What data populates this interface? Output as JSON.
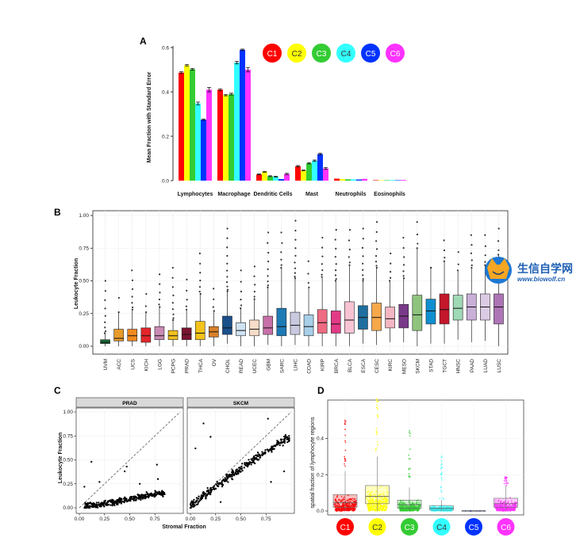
{
  "panel_labels": {
    "a": "A",
    "b": "B",
    "c": "C",
    "d": "D"
  },
  "watermark": {
    "title": "生信自学网",
    "url": "www.biowolf.cn"
  },
  "cluster_colors": [
    "#ff0000",
    "#ffff00",
    "#33cc33",
    "#33ffff",
    "#0033ff",
    "#ff33ff"
  ],
  "chart_data": [
    {
      "id": "A",
      "type": "bar",
      "title": "",
      "xlabel": "",
      "ylabel": "Mean  Fraction with Standard Error",
      "ylim": [
        0,
        0.6
      ],
      "yticks": [
        "0.0",
        "0.2",
        "0.4",
        "0.6"
      ],
      "categories": [
        "Lymphocytes",
        "Macrophage",
        "Dendritic Cells",
        "Mast",
        "Neutrophils",
        "Eosinophils"
      ],
      "legend": {
        "placement": "top-right",
        "labels": [
          "C1",
          "C2",
          "C3",
          "C4",
          "C5",
          "C6"
        ]
      },
      "series": [
        {
          "name": "C1",
          "values": [
            0.487,
            0.41,
            0.028,
            0.065,
            0.009,
            0.002
          ],
          "errors": [
            0.004,
            0.004,
            0.002,
            0.003,
            0.001,
            0.0005
          ]
        },
        {
          "name": "C2",
          "values": [
            0.52,
            0.385,
            0.04,
            0.046,
            0.007,
            0.002
          ],
          "errors": [
            0.003,
            0.003,
            0.002,
            0.002,
            0.001,
            0.0005
          ]
        },
        {
          "name": "C3",
          "values": [
            0.502,
            0.39,
            0.02,
            0.078,
            0.006,
            0.002
          ],
          "errors": [
            0.004,
            0.004,
            0.002,
            0.003,
            0.001,
            0.0005
          ]
        },
        {
          "name": "C4",
          "values": [
            0.348,
            0.532,
            0.018,
            0.09,
            0.006,
            0.003
          ],
          "errors": [
            0.006,
            0.006,
            0.002,
            0.003,
            0.001,
            0.0005
          ]
        },
        {
          "name": "C5",
          "values": [
            0.275,
            0.59,
            0.007,
            0.12,
            0.005,
            0.002
          ],
          "errors": [
            0.003,
            0.003,
            0.001,
            0.004,
            0.001,
            0.0005
          ]
        },
        {
          "name": "C6",
          "values": [
            0.41,
            0.5,
            0.03,
            0.055,
            0.008,
            0.003
          ],
          "errors": [
            0.01,
            0.01,
            0.003,
            0.004,
            0.001,
            0.0005
          ]
        }
      ]
    },
    {
      "id": "B",
      "type": "box",
      "title": "",
      "xlabel": "",
      "ylabel": "Leukocyte Fraction",
      "ylim": [
        0,
        1
      ],
      "yticks": [
        "0.00",
        "0.25",
        "0.50",
        "0.75",
        "1.00"
      ],
      "categories": [
        "UVM",
        "ACC",
        "UCS",
        "KICH",
        "LGG",
        "PCPG",
        "PRAD",
        "THCA",
        "OV",
        "CHOL",
        "READ",
        "UCEC",
        "GBM",
        "SARC",
        "LIHC",
        "COAD",
        "KIRP",
        "BRCA",
        "BLCA",
        "ESCA",
        "CESC",
        "KIRC",
        "MESO",
        "SKCM",
        "STAD",
        "TGCT",
        "HNSC",
        "PAAD",
        "LUAD",
        "LUSC"
      ],
      "colors": [
        "#1b6e3a",
        "#e89a2a",
        "#f08a1e",
        "#e3242b",
        "#c98ab5",
        "#f0c020",
        "#7a1530",
        "#f4c21a",
        "#d98028",
        "#1a4f8a",
        "#cfe3f3",
        "#f7dcc8",
        "#c76fa8",
        "#1d7ab5",
        "#c9c9df",
        "#a7cfe8",
        "#ef6b82",
        "#e23a86",
        "#f8c4d4",
        "#1e6fa0",
        "#f6a84a",
        "#f4b6c2",
        "#7a3a8a",
        "#8fc47e",
        "#0f8fd0",
        "#c4172b",
        "#9fd9b5",
        "#c9b0d8",
        "#dccbe4",
        "#ad74b6"
      ],
      "boxes": [
        {
          "q1": 0.02,
          "median": 0.03,
          "q3": 0.05,
          "lo": 0.0,
          "hi": 0.1
        },
        {
          "q1": 0.04,
          "median": 0.06,
          "q3": 0.13,
          "lo": 0.0,
          "hi": 0.26
        },
        {
          "q1": 0.04,
          "median": 0.08,
          "q3": 0.13,
          "lo": 0.0,
          "hi": 0.28
        },
        {
          "q1": 0.03,
          "median": 0.08,
          "q3": 0.14,
          "lo": 0.0,
          "hi": 0.26
        },
        {
          "q1": 0.05,
          "median": 0.08,
          "q3": 0.15,
          "lo": 0.0,
          "hi": 0.3
        },
        {
          "q1": 0.05,
          "median": 0.08,
          "q3": 0.12,
          "lo": 0.0,
          "hi": 0.2
        },
        {
          "q1": 0.05,
          "median": 0.09,
          "q3": 0.14,
          "lo": 0.0,
          "hi": 0.28
        },
        {
          "q1": 0.05,
          "median": 0.1,
          "q3": 0.19,
          "lo": 0.0,
          "hi": 0.4
        },
        {
          "q1": 0.07,
          "median": 0.11,
          "q3": 0.15,
          "lo": 0.0,
          "hi": 0.27
        },
        {
          "q1": 0.09,
          "median": 0.14,
          "q3": 0.23,
          "lo": 0.02,
          "hi": 0.42
        },
        {
          "q1": 0.08,
          "median": 0.12,
          "q3": 0.18,
          "lo": 0.0,
          "hi": 0.29
        },
        {
          "q1": 0.08,
          "median": 0.13,
          "q3": 0.2,
          "lo": 0.0,
          "hi": 0.36
        },
        {
          "q1": 0.09,
          "median": 0.14,
          "q3": 0.23,
          "lo": 0.01,
          "hi": 0.45
        },
        {
          "q1": 0.08,
          "median": 0.15,
          "q3": 0.29,
          "lo": 0.0,
          "hi": 0.6
        },
        {
          "q1": 0.09,
          "median": 0.16,
          "q3": 0.26,
          "lo": 0.01,
          "hi": 0.52
        },
        {
          "q1": 0.08,
          "median": 0.15,
          "q3": 0.24,
          "lo": 0.0,
          "hi": 0.45
        },
        {
          "q1": 0.1,
          "median": 0.18,
          "q3": 0.28,
          "lo": 0.0,
          "hi": 0.53
        },
        {
          "q1": 0.1,
          "median": 0.17,
          "q3": 0.27,
          "lo": 0.0,
          "hi": 0.5
        },
        {
          "q1": 0.1,
          "median": 0.2,
          "q3": 0.34,
          "lo": 0.0,
          "hi": 0.62
        },
        {
          "q1": 0.13,
          "median": 0.22,
          "q3": 0.31,
          "lo": 0.02,
          "hi": 0.5
        },
        {
          "q1": 0.12,
          "median": 0.22,
          "q3": 0.33,
          "lo": 0.01,
          "hi": 0.6
        },
        {
          "q1": 0.14,
          "median": 0.21,
          "q3": 0.3,
          "lo": 0.03,
          "hi": 0.5
        },
        {
          "q1": 0.14,
          "median": 0.23,
          "q3": 0.32,
          "lo": 0.03,
          "hi": 0.52
        },
        {
          "q1": 0.12,
          "median": 0.24,
          "q3": 0.39,
          "lo": 0.0,
          "hi": 0.75
        },
        {
          "q1": 0.17,
          "median": 0.27,
          "q3": 0.36,
          "lo": 0.02,
          "hi": 0.6
        },
        {
          "q1": 0.17,
          "median": 0.28,
          "q3": 0.4,
          "lo": 0.02,
          "hi": 0.65
        },
        {
          "q1": 0.2,
          "median": 0.29,
          "q3": 0.39,
          "lo": 0.05,
          "hi": 0.58
        },
        {
          "q1": 0.2,
          "median": 0.3,
          "q3": 0.4,
          "lo": 0.03,
          "hi": 0.6
        },
        {
          "q1": 0.2,
          "median": 0.3,
          "q3": 0.4,
          "lo": 0.04,
          "hi": 0.62
        },
        {
          "q1": 0.17,
          "median": 0.3,
          "q3": 0.4,
          "lo": 0.0,
          "hi": 0.7
        }
      ],
      "outlier_max": [
        0.5,
        0.37,
        0.58,
        0.4,
        0.55,
        0.6,
        0.51,
        0.71,
        0.44,
        0.9,
        0.58,
        0.61,
        0.87,
        0.87,
        0.96,
        0.65,
        0.83,
        0.89,
        0.89,
        0.9,
        0.95,
        0.71,
        0.83,
        0.95,
        0.6,
        0.81,
        0.72,
        0.85,
        0.85,
        0.9
      ]
    },
    {
      "id": "C",
      "type": "scatter",
      "title": "",
      "xlabel": "Stromal Fraction",
      "ylabel": "Leukocyte Fraction",
      "xlim": [
        0,
        1
      ],
      "ylim": [
        0,
        1
      ],
      "xticks": [
        "0.00",
        "0.25",
        "0.50",
        "0.75"
      ],
      "yticks": [
        "0.00",
        "0.25",
        "0.50",
        "0.75",
        "1.00"
      ],
      "facets": [
        {
          "name": "PRAD",
          "trend": [
            [
              0.05,
              0.01
            ],
            [
              0.3,
              0.05
            ],
            [
              0.55,
              0.1
            ],
            [
              0.8,
              0.15
            ]
          ],
          "spread": 0.05,
          "extras": [
            [
              0.12,
              0.48
            ],
            [
              0.47,
              0.43
            ],
            [
              0.77,
              0.45
            ],
            [
              0.45,
              0.38
            ],
            [
              0.2,
              0.27
            ],
            [
              0.6,
              0.25
            ],
            [
              0.78,
              0.3
            ],
            [
              0.05,
              0.22
            ]
          ]
        },
        {
          "name": "SKCM",
          "trend": [
            [
              0.0,
              0.03
            ],
            [
              0.4,
              0.33
            ],
            [
              0.7,
              0.55
            ],
            [
              0.95,
              0.72
            ]
          ],
          "spread": 0.07,
          "extras": [
            [
              0.13,
              0.88
            ],
            [
              0.2,
              0.74
            ],
            [
              0.77,
              0.93
            ],
            [
              0.05,
              0.62
            ],
            [
              0.8,
              0.27
            ],
            [
              0.93,
              0.38
            ],
            [
              0.3,
              0.06
            ]
          ]
        }
      ]
    },
    {
      "id": "D",
      "type": "violin",
      "title": "",
      "xlabel": "",
      "ylabel": "spatial fraction of lymphocyte regions",
      "ylim": [
        0,
        0.62
      ],
      "yticks": [
        "0.0",
        "0.2",
        "0.4"
      ],
      "categories": [
        "C1",
        "C2",
        "C3",
        "C4",
        "C5",
        "C6"
      ],
      "boxes": [
        {
          "q1": 0.02,
          "median": 0.045,
          "q3": 0.09,
          "lo": 0.0,
          "hi": 0.22,
          "max": 0.5
        },
        {
          "q1": 0.04,
          "median": 0.08,
          "q3": 0.14,
          "lo": 0.0,
          "hi": 0.3,
          "max": 0.62
        },
        {
          "q1": 0.015,
          "median": 0.035,
          "q3": 0.06,
          "lo": 0.0,
          "hi": 0.13,
          "max": 0.46
        },
        {
          "q1": 0.005,
          "median": 0.015,
          "q3": 0.03,
          "lo": 0.0,
          "hi": 0.06,
          "max": 0.31
        },
        {
          "q1": 0.0,
          "median": 0.0,
          "q3": 0.002,
          "lo": 0.0,
          "hi": 0.004,
          "max": 0.004
        },
        {
          "q1": 0.02,
          "median": 0.04,
          "q3": 0.07,
          "lo": 0.0,
          "hi": 0.14,
          "max": 0.19
        }
      ]
    }
  ]
}
